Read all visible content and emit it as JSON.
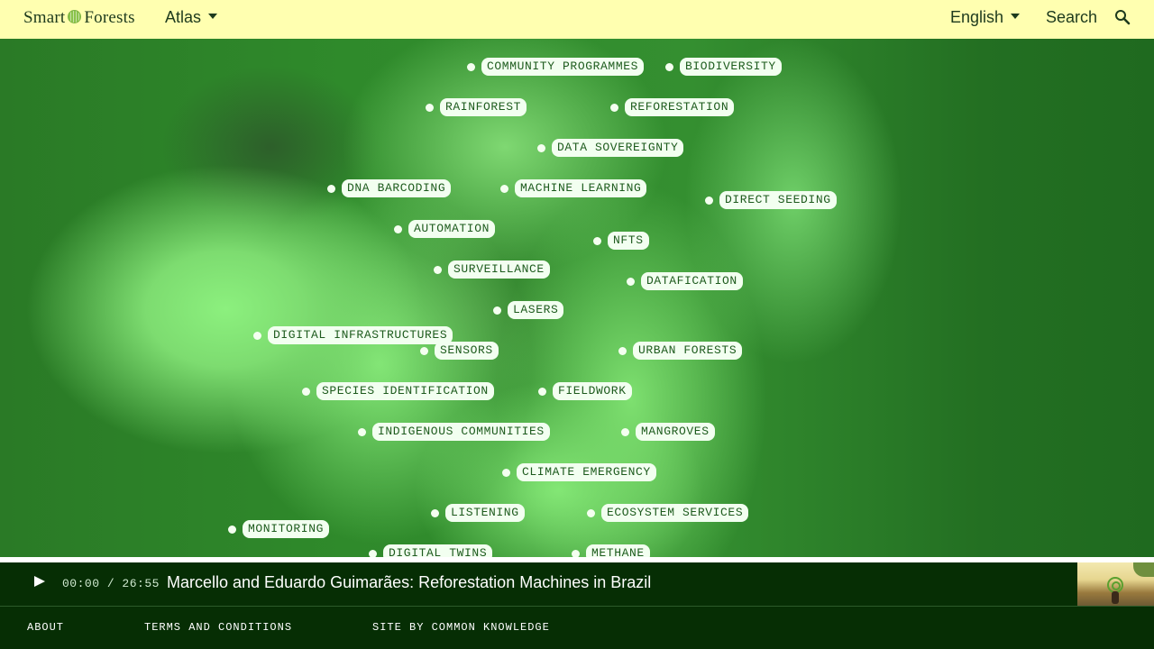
{
  "header": {
    "logo_left": "Smart",
    "logo_right": "Forests",
    "nav_atlas": "Atlas",
    "language": "English",
    "search_label": "Search"
  },
  "map": {
    "tags": [
      {
        "label": "COMMUNITY PROGRAMMES"
      },
      {
        "label": "BIODIVERSITY"
      },
      {
        "label": "RAINFOREST"
      },
      {
        "label": "REFORESTATION"
      },
      {
        "label": "DATA SOVEREIGNTY"
      },
      {
        "label": "DNA BARCODING"
      },
      {
        "label": "MACHINE LEARNING"
      },
      {
        "label": "DIRECT SEEDING"
      },
      {
        "label": "AUTOMATION"
      },
      {
        "label": "NFTS"
      },
      {
        "label": "SURVEILLANCE"
      },
      {
        "label": "DATAFICATION"
      },
      {
        "label": "LASERS"
      },
      {
        "label": "DIGITAL INFRASTRUCTURES"
      },
      {
        "label": "SENSORS"
      },
      {
        "label": "URBAN FORESTS"
      },
      {
        "label": "SPECIES IDENTIFICATION"
      },
      {
        "label": "FIELDWORK"
      },
      {
        "label": "INDIGENOUS COMMUNITIES"
      },
      {
        "label": "MANGROVES"
      },
      {
        "label": "CLIMATE EMERGENCY"
      },
      {
        "label": "LISTENING"
      },
      {
        "label": "ECOSYSTEM SERVICES"
      },
      {
        "label": "MONITORING"
      },
      {
        "label": "DIGITAL TWINS"
      },
      {
        "label": "METHANE"
      }
    ]
  },
  "player": {
    "time_current": "00:00",
    "time_total": "26:55",
    "title": "Marcello and Eduardo Guimarães: Reforestation Machines in Brazil"
  },
  "footer": {
    "about": "ABOUT",
    "terms": "TERMS AND CONDITIONS",
    "credit": "SITE BY COMMON KNOWLEDGE"
  }
}
